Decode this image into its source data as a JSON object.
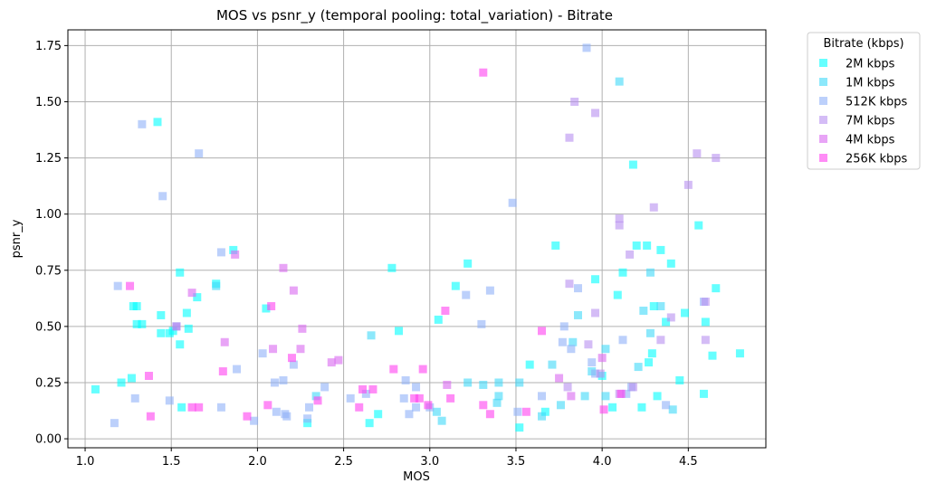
{
  "chart_data": {
    "type": "scatter",
    "title": "MOS vs psnr_y (temporal pooling: total_variation) - Bitrate",
    "xlabel": "MOS",
    "ylabel": "psnr_y",
    "xlim": [
      0.9,
      4.95
    ],
    "ylim": [
      -0.04,
      1.82
    ],
    "xticks": [
      1.0,
      1.5,
      2.0,
      2.5,
      3.0,
      3.5,
      4.0,
      4.5
    ],
    "xtick_labels": [
      "1.0",
      "1.5",
      "2.0",
      "2.5",
      "3.0",
      "3.5",
      "4.0",
      "4.5"
    ],
    "yticks": [
      0.0,
      0.25,
      0.5,
      0.75,
      1.0,
      1.25,
      1.5,
      1.75
    ],
    "ytick_labels": [
      "0.00",
      "0.25",
      "0.50",
      "0.75",
      "1.00",
      "1.25",
      "1.50",
      "1.75"
    ],
    "grid": true,
    "marker": "square",
    "legend_title": "Bitrate (kbps)",
    "legend_position": "outside-top-right",
    "series": [
      {
        "name": "2M kbps",
        "color": "#00ffff",
        "points": [
          [
            1.06,
            0.22
          ],
          [
            1.21,
            0.25
          ],
          [
            1.27,
            0.27
          ],
          [
            1.28,
            0.59
          ],
          [
            1.3,
            0.59
          ],
          [
            1.3,
            0.51
          ],
          [
            1.33,
            0.51
          ],
          [
            1.42,
            1.41
          ],
          [
            1.44,
            0.55
          ],
          [
            1.44,
            0.47
          ],
          [
            1.49,
            0.47
          ],
          [
            1.51,
            0.48
          ],
          [
            1.55,
            0.74
          ],
          [
            1.55,
            0.42
          ],
          [
            1.56,
            0.14
          ],
          [
            1.59,
            0.56
          ],
          [
            1.6,
            0.49
          ],
          [
            1.65,
            0.63
          ],
          [
            1.76,
            0.69
          ],
          [
            1.86,
            0.84
          ],
          [
            2.05,
            0.58
          ],
          [
            2.29,
            0.07
          ],
          [
            2.65,
            0.07
          ],
          [
            2.7,
            0.11
          ],
          [
            2.78,
            0.76
          ],
          [
            2.82,
            0.48
          ],
          [
            3.05,
            0.53
          ],
          [
            3.15,
            0.68
          ],
          [
            3.22,
            0.78
          ],
          [
            3.52,
            0.05
          ],
          [
            3.58,
            0.33
          ],
          [
            3.67,
            0.12
          ],
          [
            3.73,
            0.86
          ],
          [
            3.96,
            0.71
          ],
          [
            4.0,
            0.28
          ],
          [
            4.06,
            0.14
          ],
          [
            4.09,
            0.64
          ],
          [
            4.12,
            0.74
          ],
          [
            4.18,
            1.22
          ],
          [
            4.2,
            0.86
          ],
          [
            4.23,
            0.14
          ],
          [
            4.26,
            0.86
          ],
          [
            4.27,
            0.34
          ],
          [
            4.29,
            0.38
          ],
          [
            4.3,
            0.59
          ],
          [
            4.32,
            0.19
          ],
          [
            4.34,
            0.84
          ],
          [
            4.37,
            0.52
          ],
          [
            4.4,
            0.78
          ],
          [
            4.45,
            0.26
          ],
          [
            4.48,
            0.56
          ],
          [
            4.56,
            0.95
          ],
          [
            4.59,
            0.2
          ],
          [
            4.6,
            0.52
          ],
          [
            4.64,
            0.37
          ],
          [
            4.66,
            0.67
          ],
          [
            4.8,
            0.38
          ]
        ]
      },
      {
        "name": "1M kbps",
        "color": "#40d8f8",
        "points": [
          [
            1.53,
            0.5
          ],
          [
            1.76,
            0.68
          ],
          [
            2.34,
            0.19
          ],
          [
            2.66,
            0.46
          ],
          [
            3.04,
            0.12
          ],
          [
            3.07,
            0.08
          ],
          [
            3.22,
            0.25
          ],
          [
            3.31,
            0.24
          ],
          [
            3.39,
            0.16
          ],
          [
            3.4,
            0.19
          ],
          [
            3.4,
            0.25
          ],
          [
            3.52,
            0.25
          ],
          [
            3.65,
            0.1
          ],
          [
            3.71,
            0.33
          ],
          [
            3.76,
            0.15
          ],
          [
            3.83,
            0.43
          ],
          [
            3.86,
            0.55
          ],
          [
            3.9,
            0.19
          ],
          [
            3.94,
            0.3
          ],
          [
            4.02,
            0.4
          ],
          [
            4.02,
            0.19
          ],
          [
            4.1,
            1.59
          ],
          [
            4.21,
            0.32
          ],
          [
            4.24,
            0.57
          ],
          [
            4.28,
            0.74
          ],
          [
            4.28,
            0.47
          ],
          [
            4.34,
            0.59
          ],
          [
            4.41,
            0.13
          ]
        ]
      },
      {
        "name": "512K kbps",
        "color": "#90b0f8",
        "points": [
          [
            1.17,
            0.07
          ],
          [
            1.19,
            0.68
          ],
          [
            1.29,
            0.18
          ],
          [
            1.33,
            1.4
          ],
          [
            1.45,
            1.08
          ],
          [
            1.49,
            0.17
          ],
          [
            1.66,
            1.27
          ],
          [
            1.79,
            0.83
          ],
          [
            1.79,
            0.14
          ],
          [
            1.88,
            0.31
          ],
          [
            1.98,
            0.08
          ],
          [
            2.03,
            0.38
          ],
          [
            2.1,
            0.25
          ],
          [
            2.11,
            0.12
          ],
          [
            2.15,
            0.26
          ],
          [
            2.16,
            0.11
          ],
          [
            2.17,
            0.1
          ],
          [
            2.21,
            0.33
          ],
          [
            2.29,
            0.09
          ],
          [
            2.3,
            0.14
          ],
          [
            2.39,
            0.23
          ],
          [
            2.54,
            0.18
          ],
          [
            2.63,
            0.2
          ],
          [
            2.85,
            0.18
          ],
          [
            2.86,
            0.26
          ],
          [
            2.88,
            0.11
          ],
          [
            2.92,
            0.23
          ],
          [
            2.92,
            0.14
          ],
          [
            3.0,
            0.14
          ],
          [
            3.21,
            0.64
          ],
          [
            3.3,
            0.51
          ],
          [
            3.35,
            0.66
          ],
          [
            3.48,
            1.05
          ],
          [
            3.51,
            0.12
          ],
          [
            3.65,
            0.19
          ],
          [
            3.77,
            0.43
          ],
          [
            3.78,
            0.5
          ],
          [
            3.82,
            0.4
          ],
          [
            3.86,
            0.67
          ],
          [
            3.91,
            1.74
          ],
          [
            3.94,
            0.34
          ],
          [
            3.96,
            0.29
          ],
          [
            4.12,
            0.44
          ],
          [
            4.14,
            0.2
          ],
          [
            4.17,
            0.23
          ],
          [
            4.37,
            0.15
          ],
          [
            4.59,
            0.61
          ]
        ]
      },
      {
        "name": "7M kbps",
        "color": "#b890f0",
        "points": [
          [
            3.8,
            0.23
          ],
          [
            3.81,
            1.34
          ],
          [
            3.81,
            0.69
          ],
          [
            3.84,
            1.5
          ],
          [
            3.92,
            0.42
          ],
          [
            3.96,
            1.45
          ],
          [
            3.96,
            0.56
          ],
          [
            3.99,
            0.29
          ],
          [
            4.1,
            0.98
          ],
          [
            4.1,
            0.95
          ],
          [
            4.1,
            0.2
          ],
          [
            4.16,
            0.82
          ],
          [
            4.18,
            0.23
          ],
          [
            4.3,
            1.03
          ],
          [
            4.34,
            0.44
          ],
          [
            4.4,
            0.54
          ],
          [
            4.5,
            1.13
          ],
          [
            4.55,
            1.27
          ],
          [
            4.6,
            0.61
          ],
          [
            4.6,
            0.44
          ],
          [
            4.66,
            1.25
          ]
        ]
      },
      {
        "name": "4M kbps",
        "color": "#d868f0",
        "points": [
          [
            1.53,
            0.5
          ],
          [
            1.62,
            0.65
          ],
          [
            1.81,
            0.43
          ],
          [
            1.87,
            0.82
          ],
          [
            2.09,
            0.4
          ],
          [
            2.15,
            0.76
          ],
          [
            2.21,
            0.66
          ],
          [
            2.25,
            0.4
          ],
          [
            2.26,
            0.49
          ],
          [
            2.43,
            0.34
          ],
          [
            2.47,
            0.35
          ],
          [
            3.1,
            0.24
          ],
          [
            3.75,
            0.27
          ],
          [
            3.82,
            0.19
          ],
          [
            4.0,
            0.36
          ]
        ]
      },
      {
        "name": "256K kbps",
        "color": "#ff40f0",
        "points": [
          [
            1.26,
            0.68
          ],
          [
            1.37,
            0.28
          ],
          [
            1.38,
            0.1
          ],
          [
            1.62,
            0.14
          ],
          [
            1.66,
            0.14
          ],
          [
            1.8,
            0.3
          ],
          [
            1.94,
            0.1
          ],
          [
            2.06,
            0.15
          ],
          [
            2.08,
            0.59
          ],
          [
            2.2,
            0.36
          ],
          [
            2.35,
            0.17
          ],
          [
            2.59,
            0.14
          ],
          [
            2.61,
            0.22
          ],
          [
            2.67,
            0.22
          ],
          [
            2.79,
            0.31
          ],
          [
            2.91,
            0.18
          ],
          [
            2.94,
            0.18
          ],
          [
            2.96,
            0.31
          ],
          [
            2.99,
            0.15
          ],
          [
            3.09,
            0.57
          ],
          [
            3.12,
            0.18
          ],
          [
            3.31,
            1.63
          ],
          [
            3.31,
            0.15
          ],
          [
            3.35,
            0.11
          ],
          [
            3.56,
            0.12
          ],
          [
            3.65,
            0.48
          ],
          [
            4.01,
            0.13
          ],
          [
            4.11,
            0.2
          ]
        ]
      }
    ]
  }
}
